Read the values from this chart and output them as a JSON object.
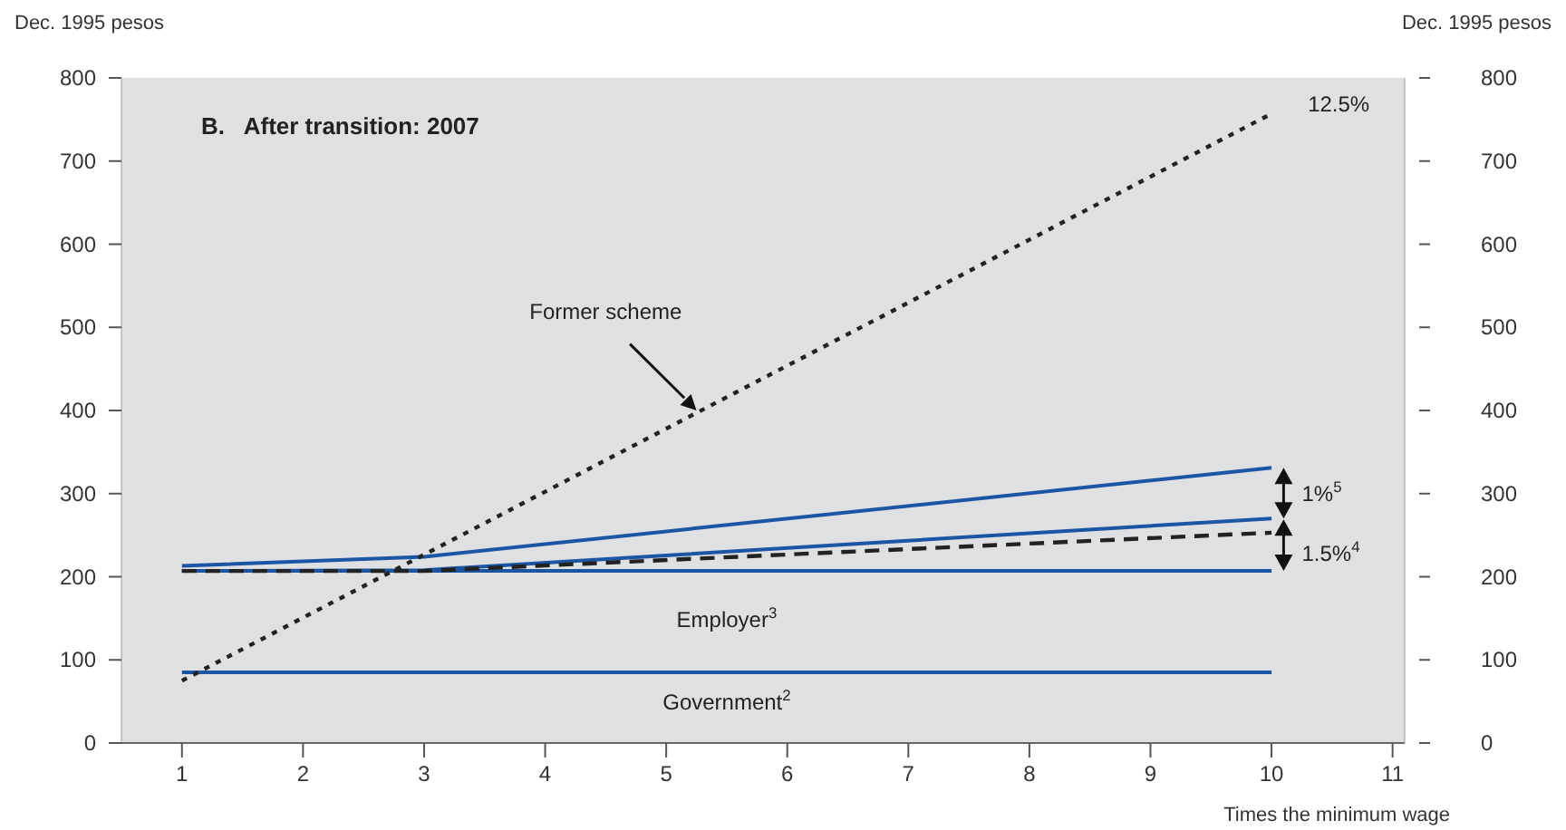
{
  "chart_data": {
    "type": "line",
    "title": "B.   After transition: 2007",
    "ylabel": "Dec. 1995 pesos",
    "y2label": "Dec. 1995 pesos",
    "xlabel": "Times the minimum wage",
    "xlim": [
      0.5,
      11.1
    ],
    "xticks": [
      1,
      2,
      3,
      4,
      5,
      6,
      7,
      8,
      9,
      10,
      11
    ],
    "ylim": [
      0,
      800
    ],
    "yticks": [
      0,
      100,
      200,
      300,
      400,
      500,
      600,
      700,
      800
    ],
    "y2lim": [
      0,
      800
    ],
    "y2ticks": [
      0,
      100,
      200,
      300,
      400,
      500,
      600,
      700,
      800
    ],
    "grid": false,
    "marker": "none",
    "series": [
      {
        "color": "#1b55a3",
        "line_style": "solid",
        "x": [
          1,
          10
        ],
        "values": [
          85,
          85
        ]
      },
      {
        "color": "#1b55a3",
        "line_style": "solid",
        "x": [
          1,
          10
        ],
        "values": [
          207,
          207
        ]
      },
      {
        "color": "#1b55a3",
        "line_style": "solid",
        "x": [
          1,
          3,
          10
        ],
        "values": [
          207,
          208,
          270
        ]
      },
      {
        "color": "#1b55a3",
        "line_style": "solid",
        "x": [
          1,
          3,
          10
        ],
        "values": [
          213,
          224,
          331
        ]
      },
      {
        "color": "#222222",
        "line_style": "dashed",
        "x": [
          1,
          3,
          10
        ],
        "values": [
          207,
          207,
          253
        ]
      },
      {
        "color": "#222222",
        "line_style": "dotted",
        "x": [
          1,
          10
        ],
        "values": [
          75,
          757
        ]
      }
    ],
    "annotations": [
      "12.5%",
      "Former scheme",
      "1%$^{5}$",
      "1.5%$^{4}$",
      "Employer$^{3}$",
      "Government$^{2}$"
    ]
  }
}
